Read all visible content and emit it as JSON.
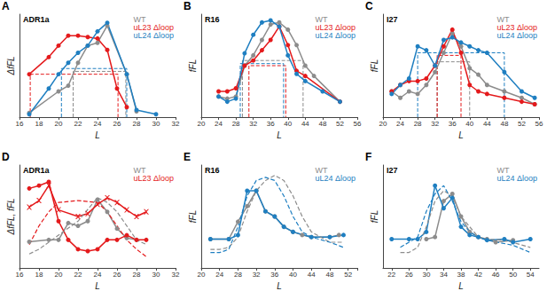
{
  "chart_data": [
    {
      "type": "line",
      "title": "A",
      "subtitle": "ADR1a",
      "x_label": "L",
      "y_label": "ΔfFL",
      "xlim": [
        16,
        32
      ],
      "xticks": [
        16,
        18,
        20,
        22,
        24,
        26,
        28,
        30,
        32
      ],
      "ylim": [
        0,
        0.72
      ],
      "tick_labels": "x",
      "grid": false,
      "legend": "top-right",
      "series": [
        {
          "name": "WT",
          "color": "#8c8c8c",
          "marker": "circle",
          "line_style": "solid",
          "x": [
            17,
            20,
            21,
            22,
            23,
            24,
            25,
            27,
            28
          ],
          "values": [
            0.03,
            0.18,
            0.22,
            0.38,
            0.5,
            0.52,
            0.64,
            0.3,
            0.04
          ]
        },
        {
          "name": "uL23 Δloop",
          "color": "#e41a1c",
          "marker": "circle",
          "line_style": "solid",
          "x": [
            17,
            19,
            20,
            21,
            22,
            23,
            24,
            25,
            26,
            27
          ],
          "values": [
            0.3,
            0.42,
            0.5,
            0.57,
            0.57,
            0.56,
            0.55,
            0.47,
            0.2,
            0.07
          ]
        },
        {
          "name": "uL24 Δloop",
          "color": "#1f7fc1",
          "marker": "circle",
          "line_style": "solid",
          "x": [
            17,
            19,
            20,
            21,
            22,
            23,
            24,
            25,
            27,
            28,
            30
          ],
          "values": [
            0.02,
            0.2,
            0.3,
            0.38,
            0.45,
            0.5,
            0.6,
            0.66,
            0.3,
            0.05,
            0.02
          ]
        }
      ],
      "guides": [
        {
          "color": "#e41a1c",
          "x": [
            17.1,
            17.1,
            26.1,
            26.1
          ],
          "y": [
            0,
            0.3,
            0.3,
            0
          ]
        },
        {
          "color": "#8c8c8c",
          "x": [
            21.5,
            21.5,
            26.9,
            26.9
          ],
          "y": [
            0,
            0.32,
            0.32,
            0
          ]
        },
        {
          "color": "#1f7fc1",
          "x": [
            20.3,
            20.3,
            27.0,
            27.0
          ],
          "y": [
            0,
            0.34,
            0.34,
            0
          ]
        }
      ]
    },
    {
      "type": "line",
      "title": "B",
      "subtitle": "R16",
      "x_label": "L",
      "y_label": "fFL",
      "xlim": [
        20,
        56
      ],
      "xticks": [
        20,
        24,
        28,
        32,
        36,
        40,
        44,
        48,
        52,
        56
      ],
      "ylim": [
        0,
        1
      ],
      "tick_labels": "x",
      "grid": false,
      "legend": "top-right",
      "series": [
        {
          "name": "WT",
          "color": "#8c8c8c",
          "marker": "circle",
          "line_style": "solid",
          "x": [
            24,
            26,
            28,
            30,
            32,
            34,
            36,
            38,
            40,
            42,
            44,
            46,
            52
          ],
          "values": [
            0.2,
            0.18,
            0.2,
            0.5,
            0.6,
            0.75,
            0.9,
            0.92,
            0.85,
            0.7,
            0.5,
            0.4,
            0.15
          ]
        },
        {
          "name": "uL23 Δloop",
          "color": "#e41a1c",
          "marker": "circle",
          "line_style": "solid",
          "x": [
            24,
            26,
            28,
            30,
            32,
            34,
            36,
            38,
            40,
            42,
            44,
            52
          ],
          "values": [
            0.25,
            0.25,
            0.28,
            0.5,
            0.55,
            0.65,
            0.75,
            0.88,
            0.7,
            0.45,
            0.4,
            0.15
          ]
        },
        {
          "name": "uL24 Δloop",
          "color": "#1f7fc1",
          "marker": "circle",
          "line_style": "solid",
          "x": [
            24,
            26,
            28,
            30,
            32,
            34,
            36,
            38,
            40,
            42,
            44,
            48,
            52
          ],
          "values": [
            0.2,
            0.15,
            0.18,
            0.62,
            0.8,
            0.92,
            0.94,
            0.88,
            0.6,
            0.42,
            0.35,
            0.25,
            0.15
          ]
        }
      ],
      "guides": [
        {
          "color": "#8c8c8c",
          "x": [
            29.5,
            29.5,
            43.5,
            43.5
          ],
          "y": [
            0,
            0.55,
            0.55,
            0
          ]
        },
        {
          "color": "#e41a1c",
          "x": [
            31,
            31,
            39.5,
            39.5
          ],
          "y": [
            0,
            0.5,
            0.5,
            0
          ]
        },
        {
          "color": "#1f7fc1",
          "x": [
            29,
            29,
            39,
            39
          ],
          "y": [
            0,
            0.52,
            0.52,
            0
          ]
        }
      ]
    },
    {
      "type": "line",
      "title": "C",
      "subtitle": "I27",
      "x_label": "L",
      "y_label": "fFL",
      "xlim": [
        20,
        56
      ],
      "xticks": [
        20,
        24,
        28,
        32,
        36,
        40,
        44,
        48,
        52,
        56
      ],
      "ylim": [
        0,
        0.8
      ],
      "tick_labels": "x",
      "grid": false,
      "legend": "top-right",
      "series": [
        {
          "name": "WT",
          "color": "#8c8c8c",
          "marker": "circle",
          "line_style": "solid",
          "x": [
            22,
            24,
            26,
            28,
            30,
            32,
            34,
            36,
            38,
            40,
            42,
            44,
            48,
            52,
            55
          ],
          "values": [
            0.2,
            0.15,
            0.2,
            0.18,
            0.25,
            0.35,
            0.5,
            0.65,
            0.55,
            0.38,
            0.33,
            0.25,
            0.2,
            0.15,
            0.1
          ]
        },
        {
          "name": "uL23 Δloop",
          "color": "#e41a1c",
          "marker": "circle",
          "line_style": "solid",
          "x": [
            22,
            24,
            26,
            28,
            30,
            32,
            34,
            36,
            38,
            40,
            42,
            44,
            48,
            52,
            55
          ],
          "values": [
            0.2,
            0.25,
            0.28,
            0.28,
            0.3,
            0.4,
            0.55,
            0.68,
            0.5,
            0.25,
            0.2,
            0.18,
            0.15,
            0.12,
            0.1
          ]
        },
        {
          "name": "uL24 Δloop",
          "color": "#1f7fc1",
          "marker": "circle",
          "line_style": "solid",
          "x": [
            22,
            24,
            26,
            28,
            30,
            32,
            34,
            36,
            38,
            40,
            42,
            44,
            48,
            52,
            55
          ],
          "values": [
            0.18,
            0.25,
            0.3,
            0.55,
            0.52,
            0.4,
            0.6,
            0.62,
            0.58,
            0.55,
            0.52,
            0.5,
            0.35,
            0.2,
            0.15
          ]
        }
      ],
      "guides": [
        {
          "color": "#8c8c8c",
          "x": [
            32.5,
            32.5,
            40,
            40
          ],
          "y": [
            0,
            0.43,
            0.43,
            0
          ]
        },
        {
          "color": "#e41a1c",
          "x": [
            32.5,
            32.5,
            38,
            38
          ],
          "y": [
            0,
            0.48,
            0.48,
            0
          ]
        },
        {
          "color": "#1f7fc1",
          "x": [
            28,
            28,
            48,
            48
          ],
          "y": [
            0,
            0.5,
            0.5,
            0
          ]
        }
      ]
    },
    {
      "type": "line",
      "title": "D",
      "subtitle": "ADR1a",
      "x_label": "L",
      "y_label": "ΔfFL, fFL",
      "xlim": [
        16,
        32
      ],
      "xticks": [
        16,
        18,
        20,
        22,
        24,
        26,
        28,
        30,
        32
      ],
      "ylim": [
        0,
        1.1
      ],
      "tick_labels": "x",
      "grid": false,
      "legend": "top-right",
      "series": [
        {
          "name": "WT",
          "color": "#8c8c8c",
          "marker": "circle",
          "line_style": "solid",
          "x": [
            17,
            19,
            20,
            21,
            22,
            23,
            24,
            25,
            26,
            27,
            28
          ],
          "values": [
            0.28,
            0.3,
            0.3,
            0.48,
            0.45,
            0.5,
            0.73,
            0.6,
            0.42,
            0.32,
            0.3
          ]
        },
        {
          "name": "uL23 Δloop",
          "color": "#e41a1c",
          "marker": "circle",
          "line_style": "solid",
          "x": [
            17,
            18,
            19,
            20,
            21,
            22,
            23,
            24,
            25,
            26,
            27,
            28,
            29
          ],
          "values": [
            0.85,
            0.88,
            0.92,
            0.5,
            0.3,
            0.2,
            0.18,
            0.2,
            0.3,
            0.3,
            0.35,
            0.3,
            0.3
          ]
        },
        {
          "name": "uL23 Δloop",
          "color": "#e41a1c",
          "marker": "cross",
          "line_style": "solid",
          "x": [
            17,
            18,
            19,
            20,
            22,
            23,
            24,
            25,
            26,
            27,
            28,
            29
          ],
          "values": [
            0.65,
            0.72,
            0.88,
            0.62,
            0.55,
            0.58,
            0.68,
            0.75,
            0.7,
            0.62,
            0.55,
            0.6
          ]
        },
        {
          "name": "uL23 Δloop",
          "color": "#e41a1c",
          "marker": "none",
          "line_style": "dashed",
          "x": [
            17,
            18,
            19,
            20,
            22,
            24,
            25,
            26,
            27,
            28,
            29
          ],
          "values": [
            0.25,
            0.45,
            0.6,
            0.7,
            0.72,
            0.7,
            0.6,
            0.45,
            0.3,
            0.2,
            0.12
          ]
        },
        {
          "name": "WT",
          "color": "#8c8c8c",
          "marker": "none",
          "line_style": "dashed",
          "x": [
            17,
            18,
            20,
            22,
            24,
            25,
            26,
            27,
            28,
            29
          ],
          "values": [
            0.15,
            0.2,
            0.35,
            0.5,
            0.75,
            0.7,
            0.6,
            0.45,
            0.3,
            0.25
          ]
        }
      ]
    },
    {
      "type": "line",
      "title": "E",
      "subtitle": "R16",
      "x_label": "L",
      "y_label": "fFL",
      "xlim": [
        20,
        54
      ],
      "xticks": [
        20,
        24,
        28,
        32,
        36,
        40,
        44,
        48,
        52
      ],
      "ylim": [
        0,
        1
      ],
      "tick_labels": "x",
      "grid": false,
      "legend": "top-right",
      "series": [
        {
          "name": "WT",
          "color": "#8c8c8c",
          "marker": "circle",
          "line_style": "solid",
          "x": [
            22,
            26,
            28,
            30,
            32,
            34,
            36,
            38,
            40,
            42,
            44,
            48,
            50
          ],
          "values": [
            0.28,
            0.28,
            0.45,
            0.6,
            0.75,
            0.55,
            0.5,
            0.4,
            0.35,
            0.32,
            0.3,
            0.3,
            0.32
          ]
        },
        {
          "name": "uL24 Δloop",
          "color": "#1f7fc1",
          "marker": "circle",
          "line_style": "solid",
          "x": [
            22,
            26,
            28,
            30,
            32,
            34,
            36,
            38,
            40,
            44,
            48,
            51
          ],
          "values": [
            0.28,
            0.28,
            0.32,
            0.75,
            0.75,
            0.55,
            0.5,
            0.4,
            0.35,
            0.3,
            0.3,
            0.32
          ]
        },
        {
          "name": "WT",
          "color": "#8c8c8c",
          "marker": "none",
          "line_style": "dashed",
          "x": [
            22,
            24,
            26,
            28,
            30,
            32,
            34,
            36,
            38,
            40,
            42,
            44,
            48,
            51
          ],
          "values": [
            0.18,
            0.18,
            0.2,
            0.3,
            0.55,
            0.75,
            0.85,
            0.9,
            0.85,
            0.7,
            0.5,
            0.35,
            0.25,
            0.25
          ]
        },
        {
          "name": "uL24 Δloop",
          "color": "#1f7fc1",
          "marker": "none",
          "line_style": "dashed",
          "x": [
            22,
            24,
            26,
            28,
            30,
            32,
            34,
            36,
            38,
            40,
            42,
            44,
            48,
            51
          ],
          "values": [
            0.15,
            0.15,
            0.18,
            0.4,
            0.7,
            0.85,
            0.88,
            0.85,
            0.7,
            0.5,
            0.35,
            0.3,
            0.25,
            0.2
          ]
        }
      ]
    },
    {
      "type": "line",
      "title": "F",
      "subtitle": "I27",
      "x_label": "L",
      "y_label": "fFL",
      "xlim": [
        20,
        56
      ],
      "xticks": [
        22,
        26,
        30,
        34,
        38,
        42,
        46,
        50,
        54
      ],
      "ylim": [
        0,
        1
      ],
      "tick_labels": "x",
      "grid": false,
      "legend": "top-right",
      "series": [
        {
          "name": "WT",
          "color": "#8c8c8c",
          "marker": "circle",
          "line_style": "solid",
          "x": [
            30,
            32,
            34,
            36,
            38,
            40,
            42,
            44,
            46,
            50
          ],
          "values": [
            0.28,
            0.3,
            0.65,
            0.72,
            0.5,
            0.35,
            0.3,
            0.28,
            0.25,
            0.27
          ]
        },
        {
          "name": "uL24 Δloop",
          "color": "#1f7fc1",
          "marker": "circle",
          "line_style": "solid",
          "x": [
            22,
            26,
            28,
            30,
            32,
            34,
            36,
            38,
            40,
            42,
            44,
            48,
            50,
            54
          ],
          "values": [
            0.28,
            0.28,
            0.28,
            0.35,
            0.8,
            0.58,
            0.68,
            0.4,
            0.32,
            0.3,
            0.27,
            0.28,
            0.25,
            0.28
          ]
        },
        {
          "name": "WT",
          "color": "#8c8c8c",
          "marker": "none",
          "line_style": "dashed",
          "x": [
            24,
            26,
            28,
            30,
            32,
            34,
            36,
            38,
            40,
            42,
            44,
            48,
            54
          ],
          "values": [
            0.15,
            0.15,
            0.2,
            0.4,
            0.65,
            0.75,
            0.7,
            0.5,
            0.4,
            0.3,
            0.28,
            0.27,
            0.2
          ]
        },
        {
          "name": "uL24 Δloop",
          "color": "#1f7fc1",
          "marker": "none",
          "line_style": "dashed",
          "x": [
            24,
            26,
            28,
            30,
            32,
            34,
            36,
            38,
            40,
            42,
            44,
            50,
            54
          ],
          "values": [
            0.2,
            0.25,
            0.3,
            0.55,
            0.72,
            0.8,
            0.65,
            0.45,
            0.35,
            0.3,
            0.27,
            0.22,
            0.15
          ]
        }
      ]
    }
  ]
}
